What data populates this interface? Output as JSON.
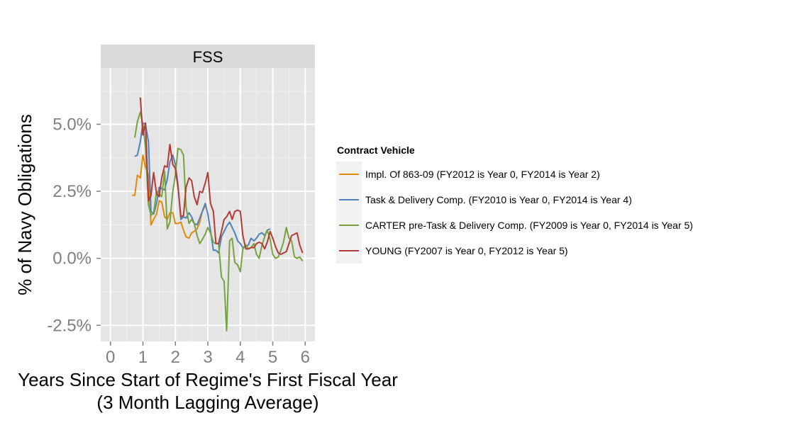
{
  "chart_data": {
    "type": "line",
    "panel_title": "FSS",
    "xlabel": "Years Since Start of Regime's First Fiscal Year",
    "xlabel_line2": "(3 Month Lagging Average)",
    "ylabel": "% of Navy Obligations",
    "xlim": [
      -0.3,
      6.3
    ],
    "ylim": [
      -3.1,
      7.1
    ],
    "x_ticks": [
      0,
      1,
      2,
      3,
      4,
      5,
      6
    ],
    "x_tick_labels": [
      "0",
      "1",
      "2",
      "3",
      "4",
      "5",
      "6"
    ],
    "y_ticks": [
      -2.5,
      0,
      2.5,
      5
    ],
    "y_tick_labels": [
      "-2.5%",
      "0.0%",
      "2.5%",
      "5.0%"
    ],
    "grid": true,
    "legend_position": "right",
    "legend_title": "Contract Vehicle",
    "series": [
      {
        "name": "Impl. Of 863-09 (FY2012 is Year 0, FY2014 is Year 2)",
        "color": "#E08A0B",
        "x": [
          0.67,
          0.75,
          0.83,
          0.92,
          1.0,
          1.08,
          1.17,
          1.25,
          1.33,
          1.42,
          1.5,
          1.58,
          1.67,
          1.75,
          1.83,
          1.92,
          2.0,
          2.08,
          2.17,
          2.25,
          2.33,
          2.42,
          2.5,
          2.58,
          2.67,
          2.75,
          2.83,
          2.92
        ],
        "y": [
          2.35,
          2.35,
          3.1,
          3.0,
          3.85,
          3.4,
          3.1,
          1.25,
          1.45,
          1.65,
          2.15,
          2.1,
          1.55,
          1.45,
          1.7,
          1.7,
          1.3,
          1.3,
          1.35,
          1.05,
          0.8,
          0.75,
          0.95,
          1.0,
          1.1,
          1.35,
          1.75,
          1.95
        ]
      },
      {
        "name": "Task & Delivery Comp. (FY2010 is Year 0, FY2014 is Year 4)",
        "color": "#4F81BD",
        "x": [
          0.75,
          0.83,
          0.92,
          1.0,
          1.08,
          1.17,
          1.25,
          1.33,
          1.42,
          1.5,
          1.58,
          1.67,
          1.75,
          1.83,
          1.92,
          2.0,
          2.08,
          2.17,
          2.25,
          2.33,
          2.42,
          2.5,
          2.58,
          2.67,
          2.75,
          2.83,
          2.92,
          3.0,
          3.08,
          3.17,
          3.25,
          3.33,
          3.42,
          3.5,
          3.58,
          3.67,
          3.75,
          3.83,
          3.92,
          4.0,
          4.08,
          4.17,
          4.25,
          4.33,
          4.42,
          4.5,
          4.58,
          4.67,
          4.75,
          4.83,
          4.92
        ],
        "y": [
          3.8,
          3.85,
          4.35,
          5.05,
          5.0,
          4.35,
          1.75,
          1.65,
          2.05,
          2.65,
          2.6,
          2.55,
          2.95,
          3.6,
          3.85,
          3.5,
          2.75,
          1.45,
          1.55,
          1.5,
          1.7,
          1.55,
          1.3,
          1.25,
          1.5,
          1.75,
          2.05,
          1.65,
          1.05,
          0.3,
          0.3,
          0.2,
          0.8,
          1.0,
          1.2,
          1.35,
          1.15,
          0.95,
          0.65,
          0.55,
          0.4,
          0.45,
          0.5,
          0.75,
          0.65,
          0.75,
          0.9,
          0.95,
          0.85,
          1.05,
          1.1
        ]
      },
      {
        "name": "CARTER pre-Task & Delivery Comp. (FY2009 is Year 0, FY2014 is Year 5)",
        "color": "#77A33F",
        "x": [
          0.75,
          0.83,
          0.92,
          1.0,
          1.08,
          1.17,
          1.25,
          1.33,
          1.42,
          1.5,
          1.58,
          1.67,
          1.75,
          1.83,
          1.92,
          2.0,
          2.08,
          2.17,
          2.25,
          2.33,
          2.42,
          2.5,
          2.58,
          2.67,
          2.75,
          2.83,
          2.92,
          3.0,
          3.08,
          3.17,
          3.25,
          3.33,
          3.42,
          3.5,
          3.58,
          3.67,
          3.75,
          3.83,
          3.92,
          4.0,
          4.08,
          4.17,
          4.25,
          4.33,
          4.42,
          4.5,
          4.58,
          4.67,
          4.75,
          4.83,
          4.92,
          5.0,
          5.08,
          5.17,
          5.25,
          5.33,
          5.42,
          5.5,
          5.58,
          5.67,
          5.75,
          5.83,
          5.92
        ],
        "y": [
          4.5,
          5.1,
          5.45,
          5.0,
          4.15,
          2.0,
          1.6,
          1.7,
          2.5,
          2.4,
          2.3,
          3.25,
          1.1,
          1.35,
          2.5,
          3.1,
          4.1,
          4.05,
          3.85,
          1.9,
          1.3,
          1.45,
          1.3,
          0.85,
          0.55,
          0.7,
          0.9,
          1.15,
          0.95,
          0.6,
          0.55,
          0.55,
          -0.7,
          -0.85,
          -2.7,
          0.65,
          0.75,
          -0.15,
          -0.25,
          -0.5,
          0.35,
          0.5,
          0.35,
          0.4,
          0.55,
          0.15,
          0.0,
          0.5,
          0.8,
          1.05,
          0.7,
          0.15,
          0.0,
          0.05,
          0.3,
          0.6,
          1.15,
          0.75,
          0.65,
          0.05,
          0.0,
          0.05,
          -0.1
        ]
      },
      {
        "name": "YOUNG (FY2007 is Year 0, FY2012 is Year 5)",
        "color": "#B33B35",
        "x": [
          0.92,
          1.0,
          1.08,
          1.17,
          1.25,
          1.33,
          1.42,
          1.5,
          1.58,
          1.67,
          1.75,
          1.83,
          1.92,
          2.0,
          2.08,
          2.17,
          2.25,
          2.33,
          2.42,
          2.5,
          2.58,
          2.67,
          2.75,
          2.83,
          2.92,
          3.0,
          3.08,
          3.17,
          3.25,
          3.33,
          3.42,
          3.5,
          3.58,
          3.67,
          3.75,
          3.83,
          3.92,
          4.0,
          4.08,
          4.17,
          4.25,
          4.33,
          4.42,
          4.5,
          4.58,
          4.67,
          4.75,
          4.83,
          4.92,
          5.0,
          5.08,
          5.17,
          5.25,
          5.33,
          5.42,
          5.5,
          5.58,
          5.67,
          5.75,
          5.83,
          5.92
        ],
        "y": [
          6.0,
          4.6,
          5.05,
          2.15,
          2.35,
          3.2,
          2.4,
          2.3,
          3.0,
          3.45,
          3.4,
          4.25,
          3.5,
          3.35,
          2.65,
          1.55,
          1.6,
          2.65,
          3.0,
          2.9,
          2.3,
          2.0,
          2.5,
          2.45,
          2.8,
          3.2,
          2.05,
          1.75,
          0.55,
          0.55,
          1.0,
          1.45,
          1.55,
          1.75,
          1.45,
          1.75,
          1.8,
          1.75,
          0.85,
          0.35,
          0.35,
          0.4,
          0.4,
          0.55,
          0.6,
          0.55,
          0.35,
          0.6,
          1.0,
          0.75,
          0.45,
          0.2,
          0.15,
          0.2,
          0.25,
          0.55,
          0.85,
          0.9,
          0.95,
          0.5,
          0.2
        ]
      }
    ]
  }
}
